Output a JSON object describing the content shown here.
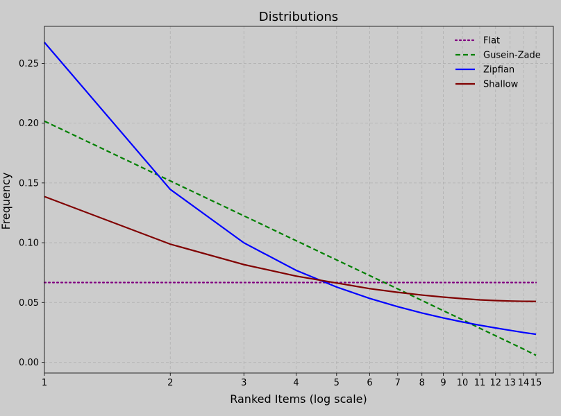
{
  "chart_data": {
    "type": "line",
    "title": "Distributions",
    "xlabel": "Ranked Items (log scale)",
    "ylabel": "Frequency",
    "x_scale": "log",
    "x": [
      1,
      2,
      3,
      4,
      5,
      6,
      7,
      8,
      9,
      10,
      11,
      12,
      13,
      14,
      15
    ],
    "x_tick_labels": [
      "1",
      "2",
      "3",
      "4",
      "5",
      "6",
      "7",
      "8",
      "9",
      "10",
      "11",
      "12",
      "13",
      "14",
      "15"
    ],
    "xlim": [
      1,
      16.5
    ],
    "ylim": [
      -0.009,
      0.281
    ],
    "y_ticks": [
      0.0,
      0.05,
      0.1,
      0.15,
      0.2,
      0.25
    ],
    "y_tick_labels": [
      "0.00",
      "0.05",
      "0.10",
      "0.15",
      "0.20",
      "0.25"
    ],
    "grid": true,
    "legend_position": "top-right",
    "background": "#cccccc",
    "series": [
      {
        "name": "Flat",
        "color": "#800080",
        "style": "dotted",
        "values": [
          0.0667,
          0.0667,
          0.0667,
          0.0667,
          0.0667,
          0.0667,
          0.0667,
          0.0667,
          0.0667,
          0.0667,
          0.0667,
          0.0667,
          0.0667,
          0.0667,
          0.0667
        ]
      },
      {
        "name": "Gusein-Zade",
        "color": "#008000",
        "style": "dashed",
        "values": [
          0.2017,
          0.1517,
          0.1225,
          0.1017,
          0.0856,
          0.0725,
          0.0614,
          0.0517,
          0.0431,
          0.0356,
          0.0285,
          0.0222,
          0.0164,
          0.011,
          0.0058
        ]
      },
      {
        "name": "Zipfian",
        "color": "#0000ff",
        "style": "solid",
        "values": [
          0.2676,
          0.1446,
          0.0999,
          0.0769,
          0.0629,
          0.0534,
          0.0465,
          0.0412,
          0.0371,
          0.0337,
          0.031,
          0.0287,
          0.0267,
          0.0249,
          0.0234
        ]
      },
      {
        "name": "Shallow",
        "color": "#800000",
        "style": "solid",
        "values": [
          0.1386,
          0.0988,
          0.0817,
          0.0721,
          0.0663,
          0.0616,
          0.0585,
          0.0562,
          0.0545,
          0.0532,
          0.0522,
          0.0516,
          0.0512,
          0.051,
          0.0509
        ]
      }
    ]
  }
}
